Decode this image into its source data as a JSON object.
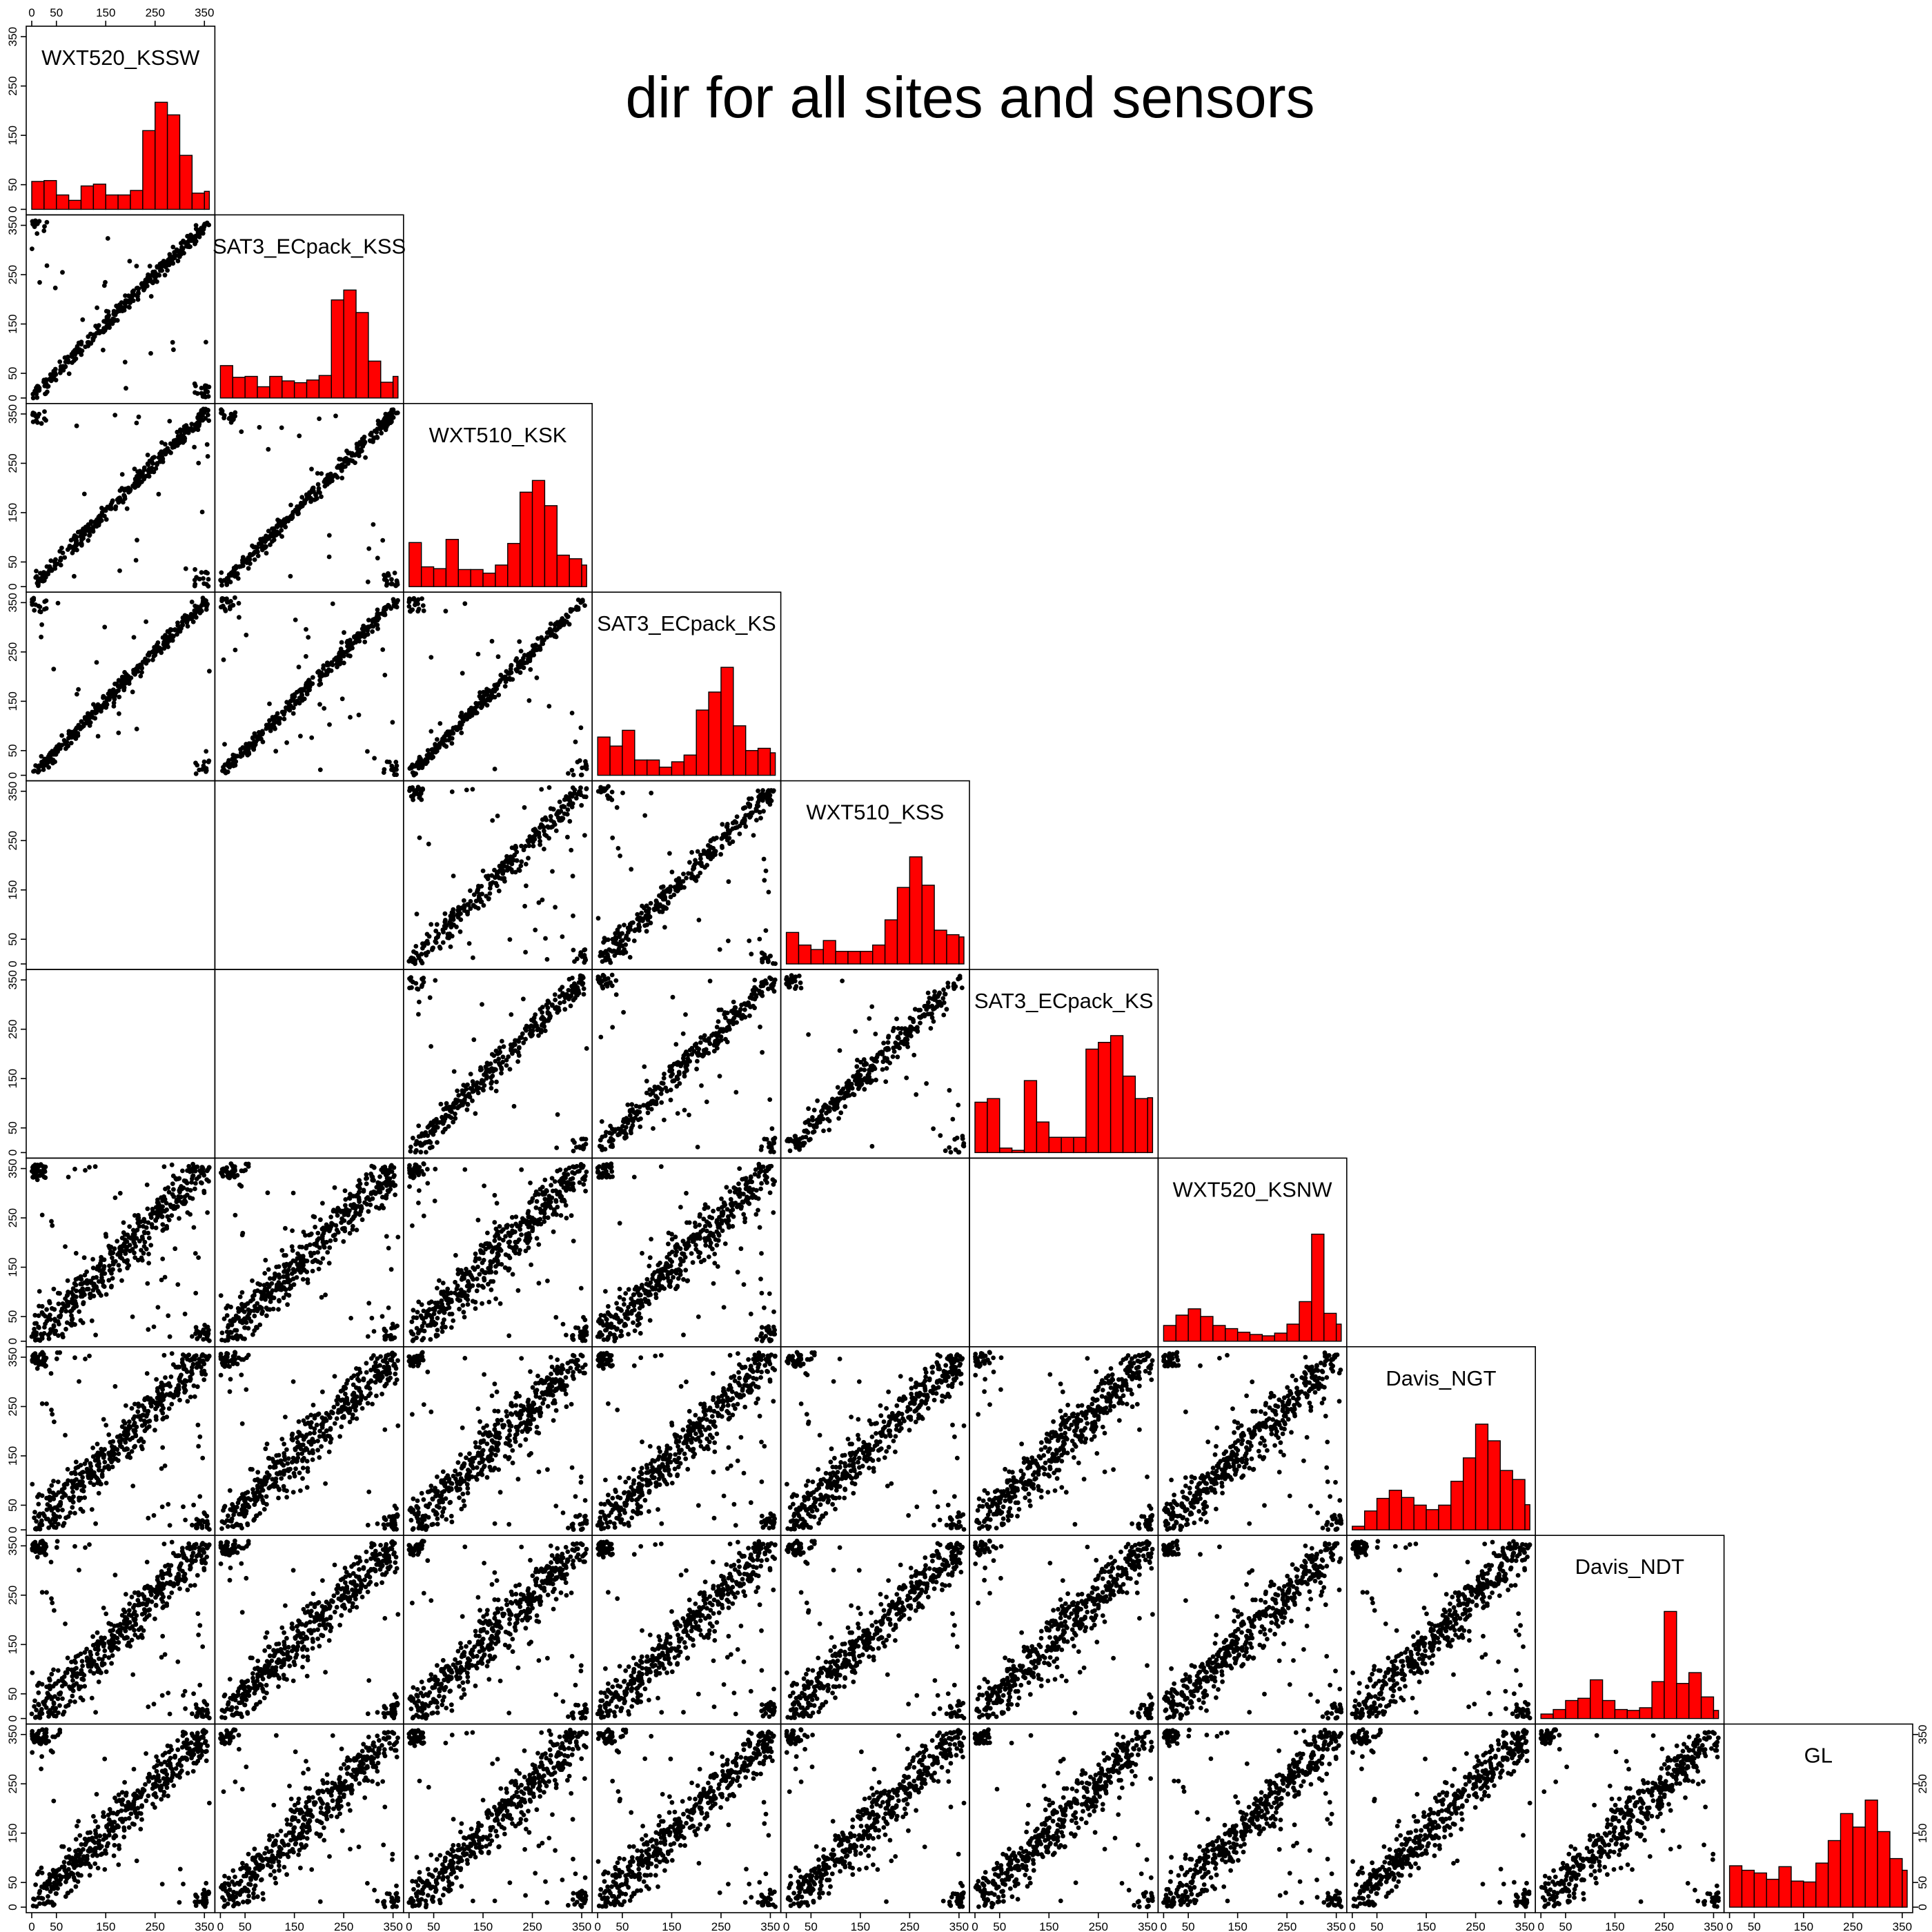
{
  "chart_data": {
    "type": "scatter",
    "title": "dir for all sites and sensors",
    "axis_range": [
      0,
      360
    ],
    "tick_values": [
      0,
      50,
      150,
      250,
      350
    ],
    "top_axis_ticks": [
      0,
      50,
      150,
      250,
      350
    ],
    "variables": [
      "WXT520_KSSW",
      "SAT3_ECpack_KSS",
      "WXT510_KSK",
      "SAT3_ECpack_KS",
      "WXT510_KSS",
      "SAT3_ECpack_KS",
      "WXT520_KSNW",
      "Davis_NGT",
      "Davis_NDT",
      "GL"
    ],
    "histogram_bins": [
      0,
      25,
      50,
      75,
      100,
      125,
      150,
      175,
      200,
      225,
      250,
      275,
      300,
      325,
      350
    ],
    "histograms": [
      [
        62,
        64,
        32,
        20,
        52,
        56,
        32,
        32,
        42,
        175,
        238,
        210,
        120,
        36,
        40,
        40,
        48
      ],
      [
        72,
        46,
        48,
        25,
        48,
        38,
        34,
        40,
        50,
        218,
        240,
        190,
        82,
        35,
        48,
        45,
        48
      ],
      [
        98,
        44,
        40,
        105,
        38,
        38,
        30,
        48,
        96,
        210,
        236,
        180,
        70,
        62,
        48,
        30,
        38
      ],
      [
        85,
        65,
        100,
        34,
        34,
        18,
        30,
        45,
        145,
        185,
        240,
        110,
        55,
        60,
        50,
        35,
        45
      ],
      [
        70,
        42,
        32,
        52,
        28,
        28,
        28,
        42,
        98,
        170,
        238,
        175,
        75,
        65,
        60,
        45,
        38
      ],
      [
        112,
        120,
        10,
        5,
        160,
        68,
        34,
        34,
        34,
        230,
        245,
        260,
        170,
        120,
        122,
        90,
        80
      ],
      [
        35,
        58,
        72,
        55,
        35,
        28,
        20,
        15,
        12,
        18,
        38,
        88,
        238,
        62,
        38,
        16,
        12
      ],
      [
        8,
        42,
        70,
        88,
        72,
        55,
        45,
        55,
        108,
        160,
        235,
        198,
        132,
        112,
        56,
        78,
        66
      ],
      [
        10,
        20,
        40,
        45,
        86,
        40,
        20,
        18,
        24,
        82,
        238,
        78,
        102,
        48,
        18,
        8,
        2
      ],
      [
        92,
        82,
        76,
        62,
        90,
        58,
        56,
        98,
        148,
        208,
        178,
        238,
        168,
        108,
        82,
        74,
        72
      ]
    ],
    "scatter_panels_present": [
      [
        1,
        0
      ],
      [
        2,
        0
      ],
      [
        2,
        1
      ],
      [
        3,
        0
      ],
      [
        3,
        1
      ],
      [
        3,
        2
      ],
      [
        4,
        2
      ],
      [
        4,
        3
      ],
      [
        5,
        2
      ],
      [
        5,
        3
      ],
      [
        5,
        4
      ],
      [
        6,
        0
      ],
      [
        6,
        1
      ],
      [
        6,
        2
      ],
      [
        6,
        3
      ],
      [
        7,
        0
      ],
      [
        7,
        1
      ],
      [
        7,
        2
      ],
      [
        7,
        3
      ],
      [
        7,
        4
      ],
      [
        7,
        5
      ],
      [
        7,
        6
      ],
      [
        8,
        0
      ],
      [
        8,
        1
      ],
      [
        8,
        2
      ],
      [
        8,
        3
      ],
      [
        8,
        4
      ],
      [
        8,
        5
      ],
      [
        8,
        6
      ],
      [
        8,
        7
      ],
      [
        9,
        0
      ],
      [
        9,
        1
      ],
      [
        9,
        2
      ],
      [
        9,
        3
      ],
      [
        9,
        4
      ],
      [
        9,
        5
      ],
      [
        9,
        6
      ],
      [
        9,
        7
      ],
      [
        9,
        8
      ]
    ],
    "scatter_panels_empty": [
      [
        4,
        0
      ],
      [
        4,
        1
      ],
      [
        5,
        0
      ],
      [
        5,
        1
      ],
      [
        6,
        4
      ],
      [
        6,
        5
      ]
    ],
    "grid": false,
    "legend": "none",
    "bar_color": "#ff0000",
    "point_color": "#000000"
  }
}
